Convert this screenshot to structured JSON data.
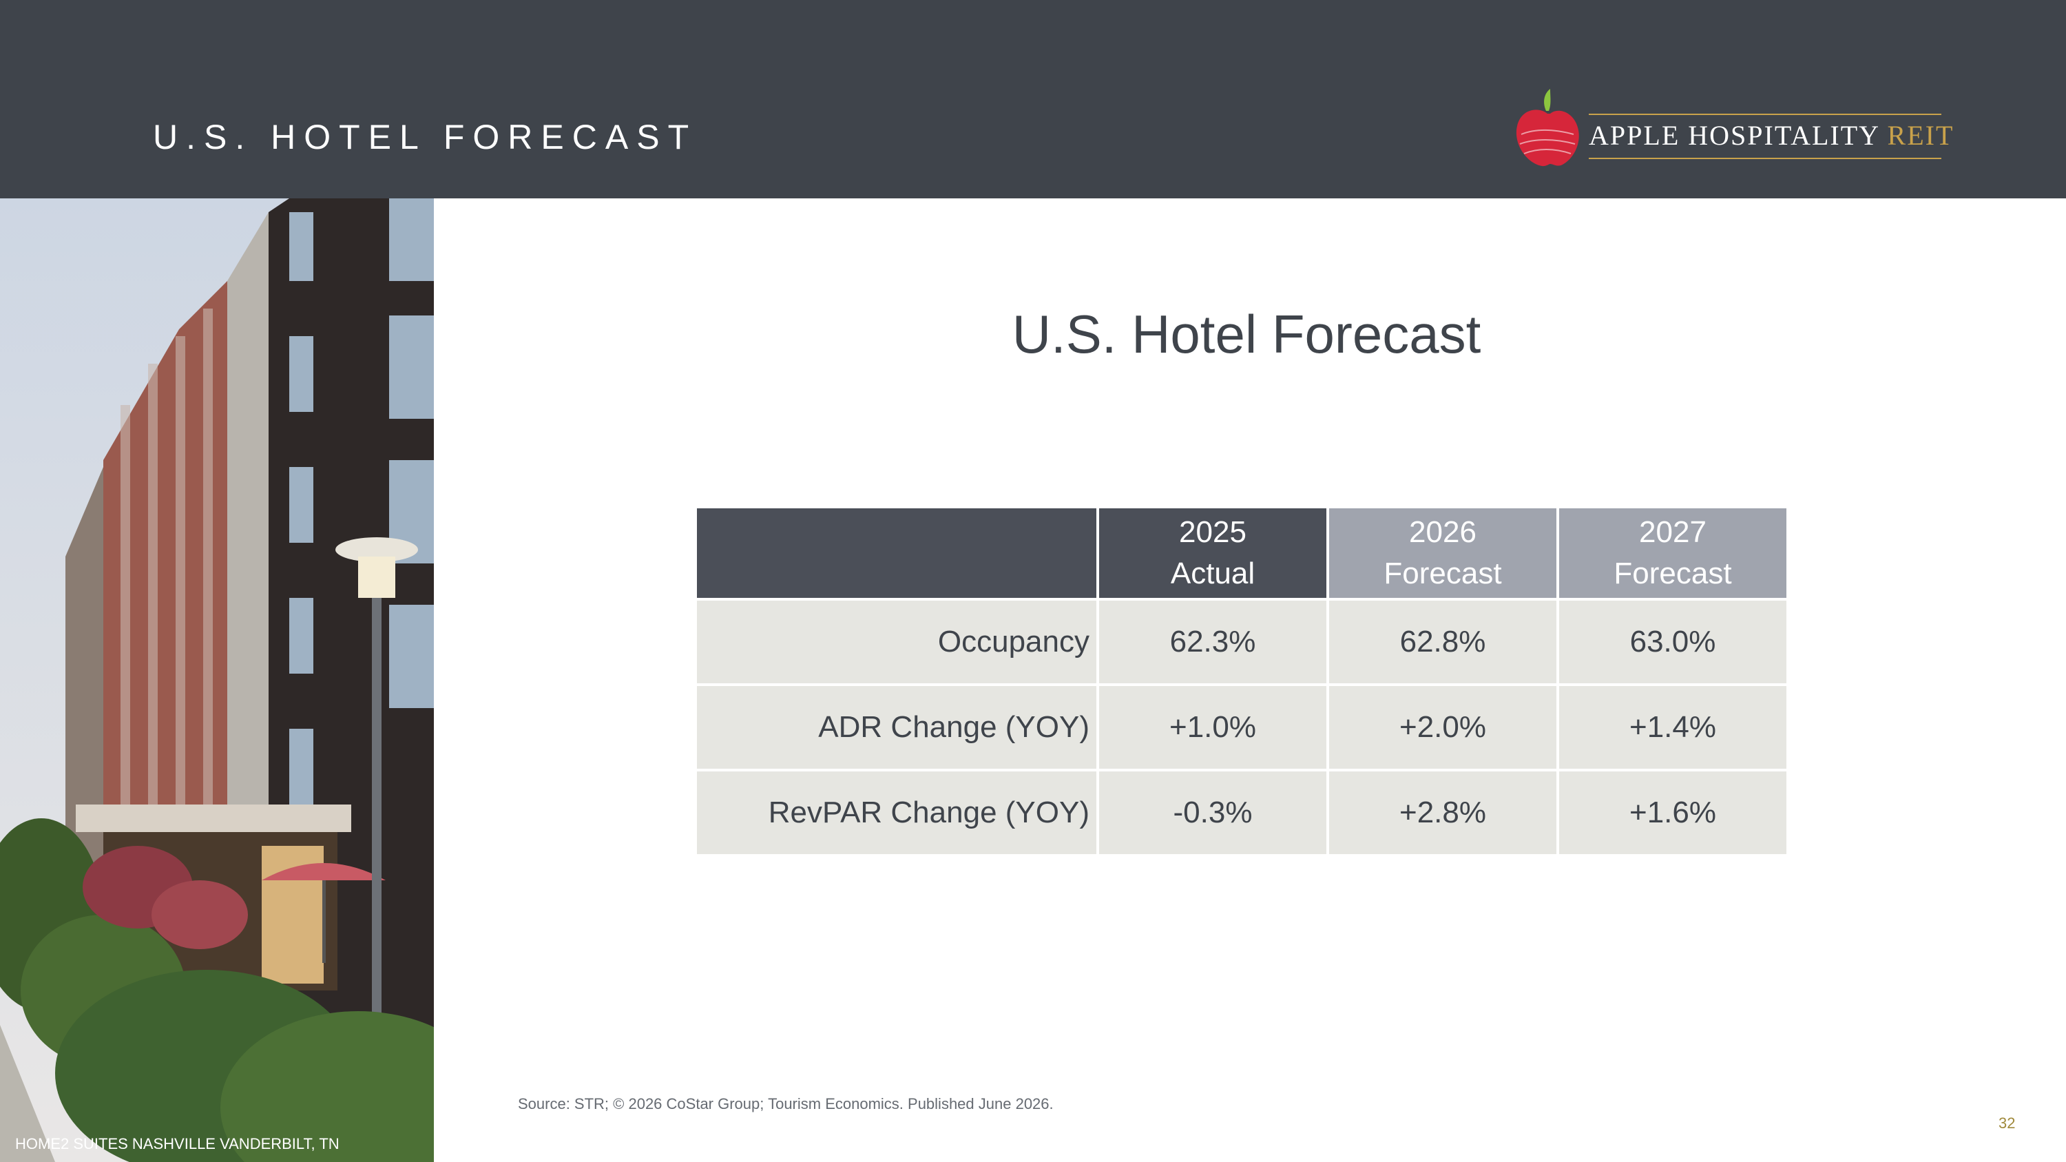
{
  "header": {
    "title": "U.S. HOTEL FORECAST",
    "background_color": "#3f444b"
  },
  "logo": {
    "name": "APPLE HOSPITALITY",
    "suffix": "REIT",
    "icon": "apple-icon",
    "accent_color": "#c9a24b",
    "apple_color": "#d6263a"
  },
  "photo": {
    "caption": "HOME2 SUITES NASHVILLE VANDERBILT, TN"
  },
  "main": {
    "title": "U.S. Hotel Forecast"
  },
  "table": {
    "columns": [
      {
        "year": "2025",
        "label": "Actual"
      },
      {
        "year": "2026",
        "label": "Forecast"
      },
      {
        "year": "2027",
        "label": "Forecast"
      }
    ],
    "rows": [
      {
        "label": "Occupancy",
        "values": [
          "62.3%",
          "62.8%",
          "63.0%"
        ]
      },
      {
        "label": "ADR Change (YOY)",
        "values": [
          "+1.0%",
          "+2.0%",
          "+1.4%"
        ]
      },
      {
        "label": "RevPAR Change (YOY)",
        "values": [
          "-0.3%",
          "+2.8%",
          "+1.6%"
        ]
      }
    ]
  },
  "footer": {
    "source": "Source: STR; © 2026 CoStar Group; Tourism Economics. Published June 2026.",
    "page_number": "32"
  }
}
